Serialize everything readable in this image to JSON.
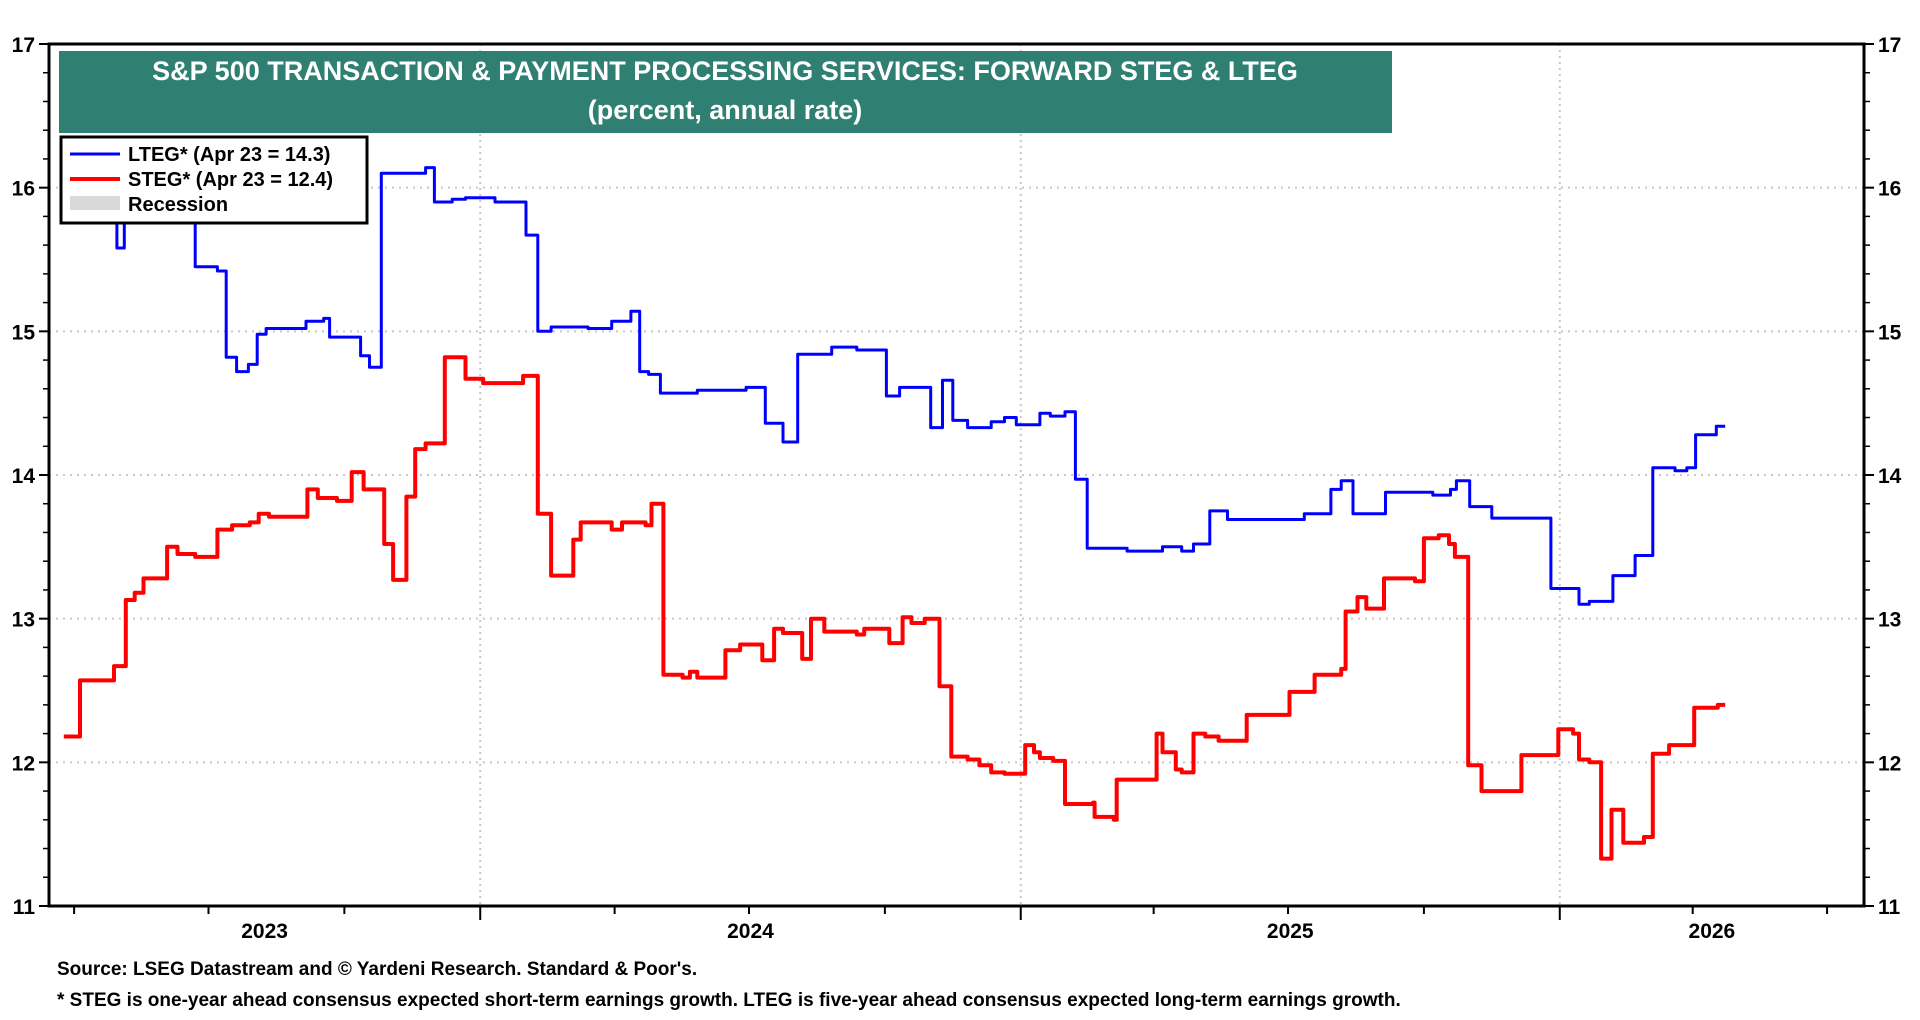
{
  "chart_data": {
    "type": "line",
    "title": "S&P 500 TRANSACTION & PAYMENT PROCESSING SERVICES: FORWARD STEG & LTEG",
    "subtitle": "(percent, annual rate)",
    "xlabel": "",
    "ylabel": "",
    "xlim": [
      "2023-03-15",
      "2026-07-26"
    ],
    "ylim": [
      11,
      17
    ],
    "yticks": [
      "11",
      "12",
      "13",
      "14",
      "15",
      "16",
      "17"
    ],
    "xtick_labels": [
      "2023",
      "2024",
      "2025",
      "2026"
    ],
    "y_axis_sides": [
      "left",
      "right"
    ],
    "grid": true,
    "legend_position": "top-left",
    "interpolation": "step",
    "legend": [
      {
        "label": "LTEG* (Apr 23 = 14.3)",
        "color": "#0000FF"
      },
      {
        "label": "STEG* (Apr 23 = 12.4)",
        "color": "#FF0000"
      },
      {
        "label": "Recession",
        "color": "#D9D9D9"
      }
    ],
    "series": [
      {
        "name": "LTEG*",
        "color": "#0000FF",
        "points": [
          [
            "2023-03-25",
            16.1
          ],
          [
            "2023-04-30",
            15.58
          ],
          [
            "2023-05-05",
            16.1
          ],
          [
            "2023-06-22",
            15.45
          ],
          [
            "2023-07-07",
            15.42
          ],
          [
            "2023-07-13",
            14.82
          ],
          [
            "2023-07-20",
            14.72
          ],
          [
            "2023-07-28",
            14.77
          ],
          [
            "2023-08-03",
            14.98
          ],
          [
            "2023-08-09",
            15.02
          ],
          [
            "2023-09-05",
            15.07
          ],
          [
            "2023-09-17",
            15.09
          ],
          [
            "2023-09-21",
            14.96
          ],
          [
            "2023-10-12",
            14.83
          ],
          [
            "2023-10-18",
            14.75
          ],
          [
            "2023-10-26",
            16.1
          ],
          [
            "2023-11-25",
            16.14
          ],
          [
            "2023-12-01",
            15.9
          ],
          [
            "2023-12-13",
            15.92
          ],
          [
            "2023-12-22",
            15.93
          ],
          [
            "2024-01-11",
            15.9
          ],
          [
            "2024-02-01",
            15.67
          ],
          [
            "2024-02-09",
            15.0
          ],
          [
            "2024-02-18",
            15.03
          ],
          [
            "2024-03-14",
            15.02
          ],
          [
            "2024-03-30",
            15.07
          ],
          [
            "2024-04-12",
            15.14
          ],
          [
            "2024-04-18",
            14.72
          ],
          [
            "2024-04-24",
            14.7
          ],
          [
            "2024-05-02",
            14.57
          ],
          [
            "2024-05-27",
            14.59
          ],
          [
            "2024-06-29",
            14.61
          ],
          [
            "2024-07-12",
            14.36
          ],
          [
            "2024-07-24",
            14.23
          ],
          [
            "2024-08-03",
            14.84
          ],
          [
            "2024-08-26",
            14.89
          ],
          [
            "2024-09-12",
            14.87
          ],
          [
            "2024-10-02",
            14.55
          ],
          [
            "2024-10-11",
            14.61
          ],
          [
            "2024-11-01",
            14.33
          ],
          [
            "2024-11-09",
            14.66
          ],
          [
            "2024-11-16",
            14.38
          ],
          [
            "2024-11-26",
            14.33
          ],
          [
            "2024-12-12",
            14.37
          ],
          [
            "2024-12-21",
            14.4
          ],
          [
            "2024-12-29",
            14.35
          ],
          [
            "2025-01-14",
            14.43
          ],
          [
            "2025-01-21",
            14.41
          ],
          [
            "2025-01-31",
            14.44
          ],
          [
            "2025-02-07",
            13.97
          ],
          [
            "2025-02-15",
            13.49
          ],
          [
            "2025-03-14",
            13.47
          ],
          [
            "2025-04-07",
            13.5
          ],
          [
            "2025-04-20",
            13.47
          ],
          [
            "2025-04-28",
            13.52
          ],
          [
            "2025-05-09",
            13.75
          ],
          [
            "2025-05-21",
            13.69
          ],
          [
            "2025-07-12",
            13.73
          ],
          [
            "2025-07-30",
            13.9
          ],
          [
            "2025-08-06",
            13.96
          ],
          [
            "2025-08-14",
            13.73
          ],
          [
            "2025-09-05",
            13.88
          ],
          [
            "2025-10-07",
            13.86
          ],
          [
            "2025-10-19",
            13.9
          ],
          [
            "2025-10-23",
            13.96
          ],
          [
            "2025-11-01",
            13.78
          ],
          [
            "2025-11-16",
            13.7
          ],
          [
            "2025-12-26",
            13.21
          ],
          [
            "2026-01-14",
            13.1
          ],
          [
            "2026-01-21",
            13.12
          ],
          [
            "2026-02-06",
            13.3
          ],
          [
            "2026-02-21",
            13.44
          ],
          [
            "2026-03-05",
            14.05
          ],
          [
            "2026-03-20",
            14.03
          ],
          [
            "2026-03-28",
            14.05
          ],
          [
            "2026-04-03",
            14.28
          ],
          [
            "2026-04-17",
            14.34
          ],
          [
            "2026-04-23",
            14.34
          ]
        ]
      },
      {
        "name": "STEG*",
        "color": "#FF0000",
        "points": [
          [
            "2023-03-25",
            12.18
          ],
          [
            "2023-04-05",
            12.57
          ],
          [
            "2023-04-28",
            12.67
          ],
          [
            "2023-05-06",
            13.13
          ],
          [
            "2023-05-12",
            13.18
          ],
          [
            "2023-05-18",
            13.28
          ],
          [
            "2023-06-03",
            13.5
          ],
          [
            "2023-06-10",
            13.45
          ],
          [
            "2023-06-22",
            13.43
          ],
          [
            "2023-07-07",
            13.62
          ],
          [
            "2023-07-17",
            13.65
          ],
          [
            "2023-07-29",
            13.67
          ],
          [
            "2023-08-04",
            13.73
          ],
          [
            "2023-08-11",
            13.71
          ],
          [
            "2023-09-06",
            13.9
          ],
          [
            "2023-09-13",
            13.84
          ],
          [
            "2023-09-26",
            13.82
          ],
          [
            "2023-10-06",
            14.02
          ],
          [
            "2023-10-14",
            13.9
          ],
          [
            "2023-10-28",
            13.52
          ],
          [
            "2023-11-03",
            13.27
          ],
          [
            "2023-11-12",
            13.85
          ],
          [
            "2023-11-18",
            14.18
          ],
          [
            "2023-11-25",
            14.22
          ],
          [
            "2023-12-08",
            14.82
          ],
          [
            "2023-12-22",
            14.67
          ],
          [
            "2024-01-03",
            14.64
          ],
          [
            "2024-01-30",
            14.69
          ],
          [
            "2024-02-09",
            13.73
          ],
          [
            "2024-02-18",
            13.3
          ],
          [
            "2024-03-04",
            13.55
          ],
          [
            "2024-03-09",
            13.67
          ],
          [
            "2024-03-30",
            13.62
          ],
          [
            "2024-04-06",
            13.67
          ],
          [
            "2024-04-22",
            13.65
          ],
          [
            "2024-04-26",
            13.8
          ],
          [
            "2024-05-04",
            12.61
          ],
          [
            "2024-05-17",
            12.59
          ],
          [
            "2024-05-22",
            12.63
          ],
          [
            "2024-05-27",
            12.59
          ],
          [
            "2024-06-15",
            12.78
          ],
          [
            "2024-06-25",
            12.82
          ],
          [
            "2024-07-10",
            12.71
          ],
          [
            "2024-07-18",
            12.93
          ],
          [
            "2024-07-24",
            12.9
          ],
          [
            "2024-08-06",
            12.72
          ],
          [
            "2024-08-12",
            13.0
          ],
          [
            "2024-08-21",
            12.91
          ],
          [
            "2024-09-12",
            12.89
          ],
          [
            "2024-09-17",
            12.93
          ],
          [
            "2024-10-04",
            12.83
          ],
          [
            "2024-10-13",
            13.01
          ],
          [
            "2024-10-19",
            12.97
          ],
          [
            "2024-10-28",
            13.0
          ],
          [
            "2024-11-07",
            12.53
          ],
          [
            "2024-11-15",
            12.04
          ],
          [
            "2024-11-26",
            12.02
          ],
          [
            "2024-12-04",
            11.98
          ],
          [
            "2024-12-12",
            11.93
          ],
          [
            "2024-12-21",
            11.92
          ],
          [
            "2025-01-04",
            12.12
          ],
          [
            "2025-01-10",
            12.07
          ],
          [
            "2025-01-14",
            12.03
          ],
          [
            "2025-01-23",
            12.01
          ],
          [
            "2025-01-31",
            11.71
          ],
          [
            "2025-02-19",
            11.72
          ],
          [
            "2025-02-20",
            11.62
          ],
          [
            "2025-03-05",
            11.6
          ],
          [
            "2025-03-07",
            11.88
          ],
          [
            "2025-03-30",
            11.88
          ],
          [
            "2025-04-03",
            12.2
          ],
          [
            "2025-04-07",
            12.07
          ],
          [
            "2025-04-16",
            11.95
          ],
          [
            "2025-04-20",
            11.93
          ],
          [
            "2025-04-28",
            12.2
          ],
          [
            "2025-05-06",
            12.18
          ],
          [
            "2025-05-15",
            12.15
          ],
          [
            "2025-06-03",
            12.33
          ],
          [
            "2025-07-02",
            12.49
          ],
          [
            "2025-07-19",
            12.61
          ],
          [
            "2025-08-06",
            12.65
          ],
          [
            "2025-08-09",
            13.05
          ],
          [
            "2025-08-17",
            13.15
          ],
          [
            "2025-08-23",
            13.07
          ],
          [
            "2025-09-04",
            13.28
          ],
          [
            "2025-09-25",
            13.26
          ],
          [
            "2025-10-01",
            13.56
          ],
          [
            "2025-10-11",
            13.58
          ],
          [
            "2025-10-18",
            13.52
          ],
          [
            "2025-10-22",
            13.43
          ],
          [
            "2025-10-31",
            11.98
          ],
          [
            "2025-11-09",
            11.8
          ],
          [
            "2025-12-06",
            12.05
          ],
          [
            "2025-12-31",
            12.23
          ],
          [
            "2026-01-10",
            12.2
          ],
          [
            "2026-01-14",
            12.02
          ],
          [
            "2026-01-21",
            12.0
          ],
          [
            "2026-01-29",
            11.33
          ],
          [
            "2026-02-05",
            11.67
          ],
          [
            "2026-02-13",
            11.44
          ],
          [
            "2026-02-27",
            11.48
          ],
          [
            "2026-03-05",
            12.06
          ],
          [
            "2026-03-16",
            12.12
          ],
          [
            "2026-04-02",
            12.38
          ],
          [
            "2026-04-18",
            12.4
          ],
          [
            "2026-04-23",
            12.4
          ]
        ]
      }
    ]
  },
  "colors": {
    "title_bg": "#2F7F73",
    "title_text": "#FFFFFF",
    "recession": "#D9D9D9",
    "grid": "#C8C8C8"
  },
  "footer": {
    "source": "Source: LSEG Datastream and © Yardeni Research. Standard & Poor's.",
    "note": "* STEG is one-year ahead consensus expected short-term earnings growth. LTEG is five-year ahead consensus expected long-term earnings growth."
  }
}
